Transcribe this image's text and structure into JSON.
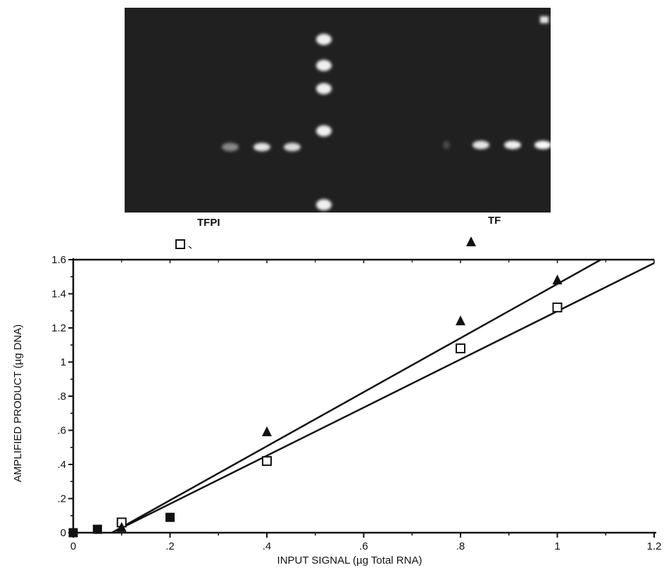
{
  "gel": {
    "labels": [
      "TFPI",
      "TF"
    ],
    "ladder_band_count": 5,
    "tfpi_band_intensity": [
      0.45,
      0.9,
      0.85
    ],
    "tf_band_intensity": [
      0.15,
      0.9,
      0.95,
      1.0
    ]
  },
  "legend": {
    "tfpi_marker": "open-square",
    "tf_marker": "filled-triangle"
  },
  "chart_data": {
    "type": "scatter",
    "title": "",
    "xlabel": "INPUT SIGNAL (µg Total RNA)",
    "ylabel": "AMPLIFIED PRODUCT (µg DNA)",
    "xlim": [
      0,
      1.2
    ],
    "ylim": [
      0,
      1.6
    ],
    "x_ticks": [
      0,
      0.2,
      0.4,
      0.6,
      0.8,
      1,
      1.2
    ],
    "x_tick_labels": [
      "0",
      ".2",
      ".4",
      ".6",
      ".8",
      "1",
      "1.2"
    ],
    "y_ticks": [
      0,
      0.2,
      0.4,
      0.6,
      0.8,
      1,
      1.2,
      1.4,
      1.6
    ],
    "y_tick_labels": [
      "0",
      ".2",
      ".4",
      ".6",
      ".8",
      "1",
      "1.2",
      "1.4",
      "1.6"
    ],
    "grid": false,
    "series": [
      {
        "name": "TFPI",
        "marker": "open-square",
        "x": [
          0.1,
          0.4,
          0.8,
          1.0
        ],
        "y": [
          0.06,
          0.42,
          1.08,
          1.32
        ]
      },
      {
        "name": "TF",
        "marker": "filled-triangle",
        "x": [
          0.1,
          0.4,
          0.8,
          1.0
        ],
        "y": [
          0.03,
          0.59,
          1.24,
          1.48
        ]
      },
      {
        "name": "",
        "marker": "filled-square",
        "x": [
          0.0,
          0.05,
          0.2
        ],
        "y": [
          0.0,
          0.02,
          0.09
        ]
      }
    ],
    "fit_lines": [
      {
        "series": "TFPI",
        "from": [
          0.08,
          0.0
        ],
        "to": [
          1.2,
          1.58
        ]
      },
      {
        "series": "TF",
        "from": [
          0.08,
          0.0
        ],
        "to": [
          1.09,
          1.6
        ]
      }
    ]
  }
}
